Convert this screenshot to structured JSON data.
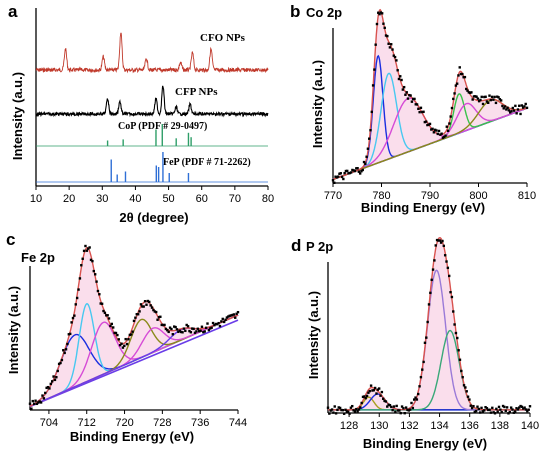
{
  "chart_data": [
    {
      "panel": "a",
      "type": "line",
      "xlabel": "2θ (degree)",
      "ylabel": "Intensity (a.u.)",
      "xlim": [
        10,
        80
      ],
      "xticks": [
        10,
        20,
        30,
        40,
        50,
        60,
        70,
        80
      ],
      "series": [
        {
          "name": "CFO NPs",
          "color": "#c0392b",
          "peaks": [
            {
              "x": 18.9,
              "height": 0.55
            },
            {
              "x": 30.3,
              "height": 0.35
            },
            {
              "x": 35.6,
              "height": 1.0
            },
            {
              "x": 43.3,
              "height": 0.3
            },
            {
              "x": 53.6,
              "height": 0.2
            },
            {
              "x": 57.2,
              "height": 0.45
            },
            {
              "x": 62.8,
              "height": 0.55
            }
          ]
        },
        {
          "name": "CFP NPs",
          "color": "#000000",
          "peaks": [
            {
              "x": 31.6,
              "height": 0.55
            },
            {
              "x": 35.3,
              "height": 0.45
            },
            {
              "x": 46.2,
              "height": 0.55
            },
            {
              "x": 48.3,
              "height": 1.0
            },
            {
              "x": 52.3,
              "height": 0.25
            },
            {
              "x": 56.5,
              "height": 0.35
            }
          ]
        },
        {
          "name": "CoP (PDF # 29-0497)",
          "color": "#2e9e68",
          "sticks": [
            {
              "x": 31.6,
              "height": 0.25
            },
            {
              "x": 36.3,
              "height": 0.3
            },
            {
              "x": 46.2,
              "height": 0.75
            },
            {
              "x": 48.1,
              "height": 1.0
            },
            {
              "x": 52.3,
              "height": 0.35
            },
            {
              "x": 56.0,
              "height": 0.6
            },
            {
              "x": 56.8,
              "height": 0.4
            }
          ]
        },
        {
          "name": "FeP (PDF # 71-2262)",
          "color": "#2f6fd6",
          "sticks": [
            {
              "x": 32.7,
              "height": 0.75
            },
            {
              "x": 34.5,
              "height": 0.25
            },
            {
              "x": 37.0,
              "height": 0.35
            },
            {
              "x": 46.3,
              "height": 0.55
            },
            {
              "x": 47.0,
              "height": 0.5
            },
            {
              "x": 48.3,
              "height": 1.0
            },
            {
              "x": 50.2,
              "height": 0.3
            },
            {
              "x": 56.0,
              "height": 0.3
            }
          ]
        }
      ]
    },
    {
      "panel": "b",
      "type": "line",
      "title": "Co 2p",
      "xlabel": "Binding Energy (eV)",
      "ylabel": "Intensity (a.u.)",
      "xlim": [
        770,
        810
      ],
      "xticks": [
        770,
        780,
        790,
        800,
        810
      ],
      "baseline": {
        "color": "#6a3de8",
        "start": 0.02,
        "end": 0.42
      },
      "components": [
        {
          "color": "#1a2ee0",
          "center": 779.3,
          "width": 1.0,
          "amp": 0.6
        },
        {
          "color": "#47c8f0",
          "center": 781.5,
          "width": 1.6,
          "amp": 0.48
        },
        {
          "color": "#d64bd6",
          "center": 785.5,
          "width": 3.0,
          "amp": 0.3
        },
        {
          "color": "#39c24a",
          "center": 796.0,
          "width": 1.1,
          "amp": 0.22
        },
        {
          "color": "#d64bd6",
          "center": 797.5,
          "width": 2.0,
          "amp": 0.15
        },
        {
          "color": "#8a8a1a",
          "center": 802.5,
          "width": 2.5,
          "amp": 0.12
        }
      ]
    },
    {
      "panel": "c",
      "type": "line",
      "title": "Fe 2p",
      "xlabel": "Binding Energy (eV)",
      "ylabel": "Intensity (a.u.)",
      "xlim": [
        700,
        744
      ],
      "xticks": [
        704,
        712,
        720,
        728,
        736,
        744
      ],
      "baseline": {
        "color": "#c9a020",
        "start": 0.02,
        "end": 0.55
      },
      "baseline2": {
        "color": "#6a3de8",
        "start": 0.02,
        "end": 0.52
      },
      "components": [
        {
          "color": "#1a2ee0",
          "center": 709.5,
          "width": 3.0,
          "amp": 0.3
        },
        {
          "color": "#47c8f0",
          "center": 712.0,
          "width": 1.6,
          "amp": 0.45
        },
        {
          "color": "#d64bd6",
          "center": 715.5,
          "width": 2.5,
          "amp": 0.3
        },
        {
          "color": "#8a8a1a",
          "center": 723.5,
          "width": 2.2,
          "amp": 0.22
        },
        {
          "color": "#d64bd6",
          "center": 726.0,
          "width": 2.3,
          "amp": 0.14
        },
        {
          "color": "#6a3de8",
          "center": 732.0,
          "width": 2.5,
          "amp": 0.06
        }
      ]
    },
    {
      "panel": "d",
      "type": "line",
      "title": "P 2p",
      "xlabel": "Binding Energy (eV)",
      "ylabel": "Intensity (a.u.)",
      "xlim": [
        126.6,
        140
      ],
      "xticks": [
        128,
        130,
        132,
        134,
        136,
        138,
        140
      ],
      "baseline": {
        "color": "#1a2e8e",
        "start": 0.02,
        "end": 0.02
      },
      "components": [
        {
          "color": "#a8a020",
          "center": 129.3,
          "width": 0.35,
          "amp": 0.08
        },
        {
          "color": "#1a2ee0",
          "center": 129.9,
          "width": 0.5,
          "amp": 0.1
        },
        {
          "color": "#9a7ad8",
          "center": 133.8,
          "width": 0.6,
          "amp": 0.88
        },
        {
          "color": "#39a878",
          "center": 134.7,
          "width": 0.6,
          "amp": 0.5
        }
      ]
    }
  ]
}
